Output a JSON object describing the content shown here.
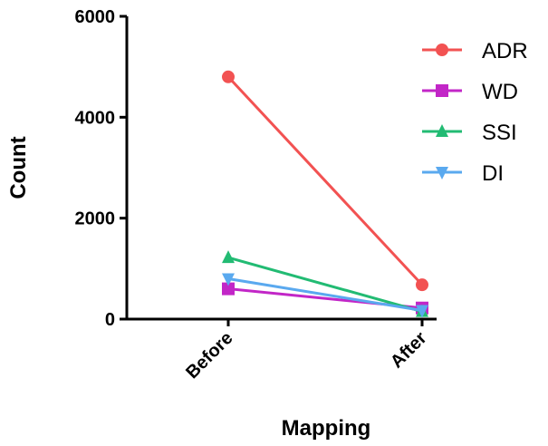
{
  "chart_data": {
    "type": "line",
    "xlabel": "Mapping",
    "ylabel": "Count",
    "categories": [
      "Before",
      "After"
    ],
    "ylim": [
      0,
      6000
    ],
    "yticks": [
      0,
      2000,
      4000,
      6000
    ],
    "grid": false,
    "legend_position": "top-right",
    "series": [
      {
        "name": "ADR",
        "values": [
          4800,
          680
        ],
        "color": "#f25252",
        "marker": "circle"
      },
      {
        "name": "WD",
        "values": [
          600,
          220
        ],
        "color": "#c226c7",
        "marker": "square"
      },
      {
        "name": "SSI",
        "values": [
          1220,
          150
        ],
        "color": "#22bb73",
        "marker": "triangle-up"
      },
      {
        "name": "DI",
        "values": [
          800,
          170
        ],
        "color": "#5aa9ef",
        "marker": "triangle-down"
      }
    ]
  }
}
